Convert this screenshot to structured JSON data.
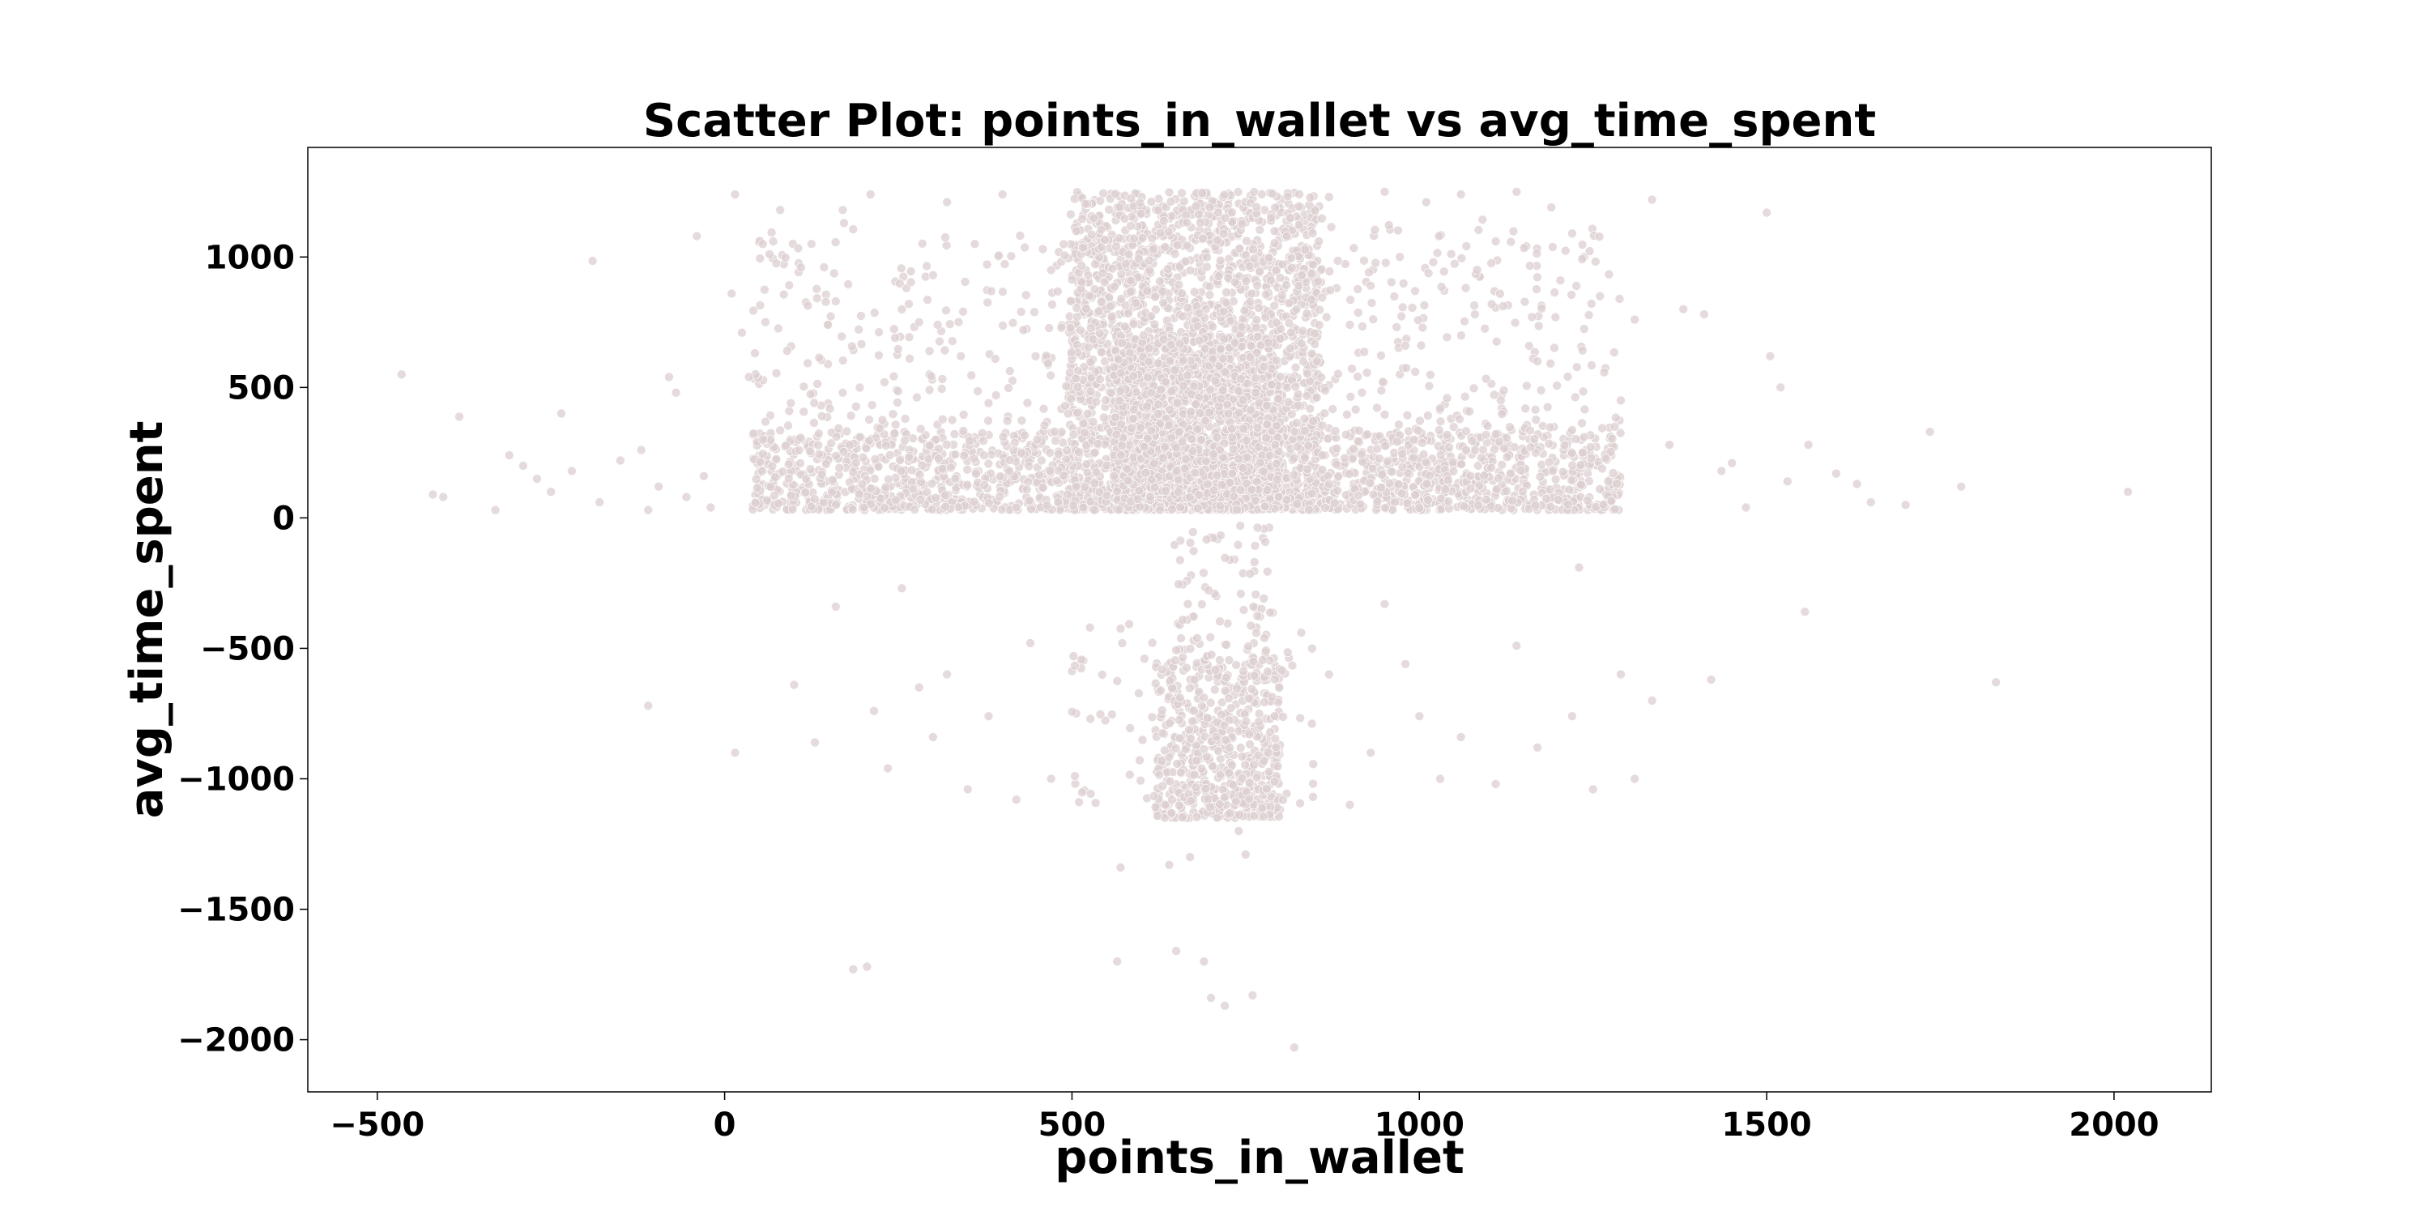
{
  "chart_data": {
    "type": "scatter",
    "title": "Scatter Plot: points_in_wallet vs avg_time_spent",
    "xlabel": "points_in_wallet",
    "ylabel": "avg_time_spent",
    "xlim": [
      -600,
      2140
    ],
    "ylim": [
      -2200,
      1420
    ],
    "x_ticks": [
      -500,
      0,
      500,
      1000,
      1500,
      2000
    ],
    "x_tick_labels": [
      "−500",
      "0",
      "500",
      "1000",
      "1500",
      "2000"
    ],
    "y_ticks": [
      -2000,
      -1500,
      -1000,
      -500,
      0,
      500,
      1000
    ],
    "y_tick_labels": [
      "−2000",
      "−1500",
      "−1000",
      "−500",
      "0",
      "500",
      "1000"
    ],
    "grid": false,
    "point_color": "#dccfd0",
    "points": [
      [
        -465,
        550
      ],
      [
        -382,
        388
      ],
      [
        -405,
        80
      ],
      [
        -420,
        90
      ],
      [
        -330,
        30
      ],
      [
        -310,
        240
      ],
      [
        -290,
        200
      ],
      [
        -270,
        150
      ],
      [
        -250,
        100
      ],
      [
        -235,
        400
      ],
      [
        -220,
        180
      ],
      [
        -190,
        985
      ],
      [
        -180,
        60
      ],
      [
        -150,
        220
      ],
      [
        -120,
        260
      ],
      [
        -110,
        30
      ],
      [
        -95,
        120
      ],
      [
        -80,
        540
      ],
      [
        -70,
        480
      ],
      [
        -55,
        80
      ],
      [
        -40,
        1080
      ],
      [
        -30,
        160
      ],
      [
        -20,
        40
      ],
      [
        10,
        860
      ],
      [
        15,
        1240
      ],
      [
        25,
        710
      ],
      [
        35,
        540
      ],
      [
        55,
        300
      ],
      [
        70,
        1060
      ],
      [
        80,
        1180
      ],
      [
        90,
        640
      ],
      [
        110,
        960
      ],
      [
        125,
        1050
      ],
      [
        140,
        390
      ],
      [
        160,
        830
      ],
      [
        170,
        1180
      ],
      [
        180,
        280
      ],
      [
        210,
        1240
      ],
      [
        230,
        520
      ],
      [
        260,
        380
      ],
      [
        280,
        750
      ],
      [
        300,
        930
      ],
      [
        320,
        1210
      ],
      [
        340,
        620
      ],
      [
        360,
        1050
      ],
      [
        380,
        440
      ],
      [
        400,
        1240
      ],
      [
        410,
        180
      ],
      [
        430,
        720
      ],
      [
        450,
        300
      ],
      [
        470,
        950
      ],
      [
        490,
        430
      ],
      [
        870,
        1230
      ],
      [
        900,
        740
      ],
      [
        930,
        890
      ],
      [
        950,
        1250
      ],
      [
        980,
        660
      ],
      [
        1010,
        1210
      ],
      [
        1030,
        420
      ],
      [
        1060,
        1240
      ],
      [
        1080,
        780
      ],
      [
        1110,
        1060
      ],
      [
        1140,
        1250
      ],
      [
        1170,
        600
      ],
      [
        1190,
        1190
      ],
      [
        1220,
        1090
      ],
      [
        1260,
        850
      ],
      [
        1290,
        450
      ],
      [
        1310,
        760
      ],
      [
        1335,
        1220
      ],
      [
        1360,
        280
      ],
      [
        1380,
        800
      ],
      [
        1410,
        780
      ],
      [
        1435,
        180
      ],
      [
        1450,
        210
      ],
      [
        1470,
        40
      ],
      [
        1500,
        1170
      ],
      [
        1505,
        620
      ],
      [
        1520,
        500
      ],
      [
        1530,
        140
      ],
      [
        1560,
        280
      ],
      [
        1600,
        170
      ],
      [
        1630,
        130
      ],
      [
        1650,
        60
      ],
      [
        1700,
        50
      ],
      [
        1735,
        330
      ],
      [
        1780,
        120
      ],
      [
        2020,
        100
      ],
      [
        -110,
        -720
      ],
      [
        15,
        -900
      ],
      [
        100,
        -640
      ],
      [
        130,
        -860
      ],
      [
        160,
        -340
      ],
      [
        185,
        -1730
      ],
      [
        205,
        -1720
      ],
      [
        215,
        -740
      ],
      [
        235,
        -960
      ],
      [
        255,
        -270
      ],
      [
        280,
        -650
      ],
      [
        300,
        -840
      ],
      [
        320,
        -600
      ],
      [
        350,
        -1040
      ],
      [
        380,
        -760
      ],
      [
        420,
        -1080
      ],
      [
        440,
        -480
      ],
      [
        470,
        -1000
      ],
      [
        830,
        -440
      ],
      [
        870,
        -600
      ],
      [
        900,
        -1100
      ],
      [
        930,
        -900
      ],
      [
        950,
        -330
      ],
      [
        980,
        -560
      ],
      [
        1000,
        -760
      ],
      [
        1030,
        -1000
      ],
      [
        1060,
        -840
      ],
      [
        1110,
        -1020
      ],
      [
        1140,
        -490
      ],
      [
        1170,
        -880
      ],
      [
        1220,
        -760
      ],
      [
        1230,
        -190
      ],
      [
        1250,
        -1040
      ],
      [
        1290,
        -600
      ],
      [
        1310,
        -1000
      ],
      [
        1335,
        -700
      ],
      [
        1420,
        -620
      ],
      [
        1555,
        -360
      ],
      [
        1830,
        -630
      ],
      [
        570,
        -1340
      ],
      [
        640,
        -1330
      ],
      [
        650,
        -1660
      ],
      [
        670,
        -1300
      ],
      [
        700,
        -1840
      ],
      [
        720,
        -1870
      ],
      [
        750,
        -1290
      ],
      [
        760,
        -1830
      ],
      [
        820,
        -2030
      ],
      [
        565,
        -1700
      ],
      [
        690,
        -1700
      ],
      [
        740,
        -1200
      ]
    ],
    "dense_clusters": [
      {
        "count": 2600,
        "x": [
          495,
          860
        ],
        "y": [
          30,
          1250
        ]
      },
      {
        "count": 1400,
        "x": [
          560,
          800
        ],
        "y": [
          30,
          700
        ]
      },
      {
        "count": 700,
        "x": [
          40,
          495
        ],
        "y": [
          30,
          330
        ]
      },
      {
        "count": 200,
        "x": [
          40,
          495
        ],
        "y": [
          330,
          1150
        ]
      },
      {
        "count": 700,
        "x": [
          860,
          1290
        ],
        "y": [
          30,
          330
        ]
      },
      {
        "count": 220,
        "x": [
          860,
          1290
        ],
        "y": [
          330,
          1150
        ]
      },
      {
        "count": 560,
        "x": [
          620,
          800
        ],
        "y": [
          -1150,
          -550
        ]
      },
      {
        "count": 110,
        "x": [
          500,
          850
        ],
        "y": [
          -1100,
          -400
        ]
      },
      {
        "count": 90,
        "x": [
          640,
          790
        ],
        "y": [
          -550,
          -30
        ]
      }
    ]
  }
}
